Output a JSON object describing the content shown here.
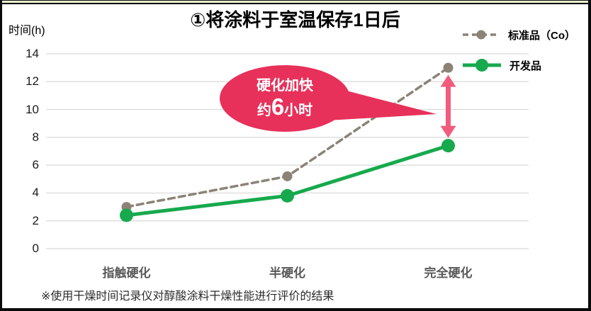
{
  "frame": {
    "top_strip_color": "#e9eecf",
    "border_color": "#0a0a0a",
    "background": "#ffffff"
  },
  "title": "①将涂料于室温保存1日后",
  "y_axis_label": "时间(h)",
  "footnote": "※使用干燥时间记录仪对醇酸涂料干燥性能进行评价的结果",
  "legend": {
    "items": [
      {
        "label": "标准品（Co）",
        "style": "dashed",
        "color": "#8b8376"
      },
      {
        "label": "开发品",
        "style": "solid",
        "color": "#17a94d"
      }
    ]
  },
  "annotation": {
    "line1": "硬化加快",
    "line2_prefix": "约",
    "line2_number": "6",
    "line2_suffix": "小时",
    "bubble_color": "#e7315a",
    "arrow_color": "#f25c7c"
  },
  "chart_data": {
    "type": "line",
    "title": "①将涂料于室温保存1日后",
    "ylabel": "时间(h)",
    "categories": [
      "指触硬化",
      "半硬化",
      "完全硬化"
    ],
    "series": [
      {
        "name": "标准品（Co）",
        "values": [
          3.0,
          5.2,
          13.0
        ],
        "color": "#8b8376",
        "dash": true,
        "line_width": 3.5,
        "marker_radius": 7
      },
      {
        "name": "开发品",
        "values": [
          2.4,
          3.8,
          7.4
        ],
        "color": "#17a94d",
        "dash": false,
        "line_width": 5,
        "marker_radius": 9.5
      }
    ],
    "ylim": [
      0,
      14
    ],
    "yticks": [
      0,
      2,
      4,
      6,
      8,
      10,
      12,
      14
    ],
    "grid": true,
    "gridline_color": "#d9d9d9",
    "legend_position": "top-right",
    "annotation_gap_hours": 5.6
  }
}
